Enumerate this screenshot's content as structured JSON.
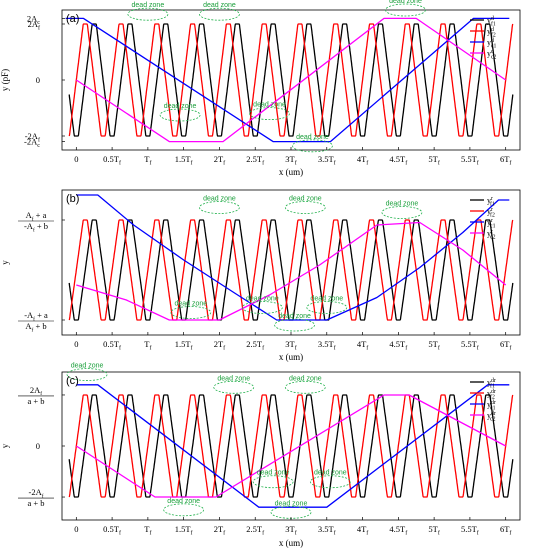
{
  "chart_data": [
    {
      "type": "line",
      "panel_label": "(a)",
      "ylabel": "y (pF)",
      "xlabel": "x (um)",
      "x_ticks": [
        "0",
        "0.5T_f",
        "T_f",
        "1.5T_f",
        "2T_f",
        "2.5T_f",
        "3T_f",
        "3.5T_f",
        "4T_f",
        "4.5T_f",
        "5T_f",
        "5.5T_f",
        "6T_f"
      ],
      "y_ticks": [
        {
          "label": "2A_c",
          "value": 2.2
        },
        {
          "label": "2A_f",
          "value": 2.0
        },
        {
          "label": "0",
          "value": 0
        },
        {
          "label": "-2A_f",
          "value": -2.0
        },
        {
          "label": "-2A_c",
          "value": -2.2
        }
      ],
      "ylim": [
        -2.5,
        2.5
      ],
      "xlim_periods": [
        -0.2,
        6.2
      ],
      "legend_position": "top-right",
      "series": [
        {
          "name": "y^d_f1",
          "color": "#000000",
          "kind": "fine_triangle",
          "amplitude": 2.0,
          "phase": 0.0
        },
        {
          "name": "y^d_f2",
          "color": "#ff0000",
          "kind": "fine_triangle",
          "amplitude": 2.0,
          "phase": 0.25
        },
        {
          "name": "y^d_c1",
          "color": "#0000ff",
          "kind": "coarse_plateau",
          "points": [
            [
              -0.15,
              2.2
            ],
            [
              0.1,
              2.2
            ],
            [
              2.75,
              -2.2
            ],
            [
              3.55,
              -2.2
            ],
            [
              5.55,
              2.2
            ],
            [
              6.05,
              2.2
            ]
          ]
        },
        {
          "name": "y^d_c2",
          "color": "#ff00ff",
          "kind": "coarse_plateau",
          "points": [
            [
              0.0,
              0.0
            ],
            [
              1.3,
              -2.2
            ],
            [
              2.05,
              -2.2
            ],
            [
              4.3,
              2.2
            ],
            [
              4.75,
              2.2
            ],
            [
              6.0,
              0.0
            ]
          ]
        }
      ],
      "annotations": [
        {
          "text": "dead zone",
          "x_period": 1.0,
          "y": 2.35
        },
        {
          "text": "dead zone",
          "x_period": 2.0,
          "y": 2.35
        },
        {
          "text": "dead zone",
          "x_period": 4.6,
          "y": 2.5
        },
        {
          "text": "dead zone",
          "x_period": 1.45,
          "y": -1.25
        },
        {
          "text": "dead zone",
          "x_period": 2.7,
          "y": -1.2
        },
        {
          "text": "dead zone",
          "x_period": 3.3,
          "y": -2.35
        }
      ]
    },
    {
      "type": "line",
      "panel_label": "(b)",
      "ylabel": "y",
      "xlabel": "x (um)",
      "x_ticks": [
        "0",
        "0.5T_f",
        "T_f",
        "1.5T_f",
        "2T_f",
        "2.5T_f",
        "3T_f",
        "3.5T_f",
        "4T_f",
        "4.5T_f",
        "5T_f",
        "5.5T_f",
        "6T_f"
      ],
      "y_ticks": [
        {
          "label_num": "A_f + a",
          "label_den": "-A_f + b",
          "value": 1.0
        },
        {
          "label_num": "-A_f + a",
          "label_den": "A_f + b",
          "value": -1.0
        }
      ],
      "ylim": [
        -1.3,
        1.6
      ],
      "xlim_periods": [
        -0.2,
        6.2
      ],
      "legend_position": "top-right",
      "series": [
        {
          "name": "y^r_f1",
          "color": "#000000",
          "kind": "fine_triangle",
          "amplitude": 1.0,
          "phase": 0.0
        },
        {
          "name": "y^r_f2",
          "color": "#ff0000",
          "kind": "fine_triangle",
          "amplitude": 1.0,
          "phase": 0.25
        },
        {
          "name": "y^r_c1",
          "color": "#0000ff",
          "kind": "coarse_curve",
          "points": [
            [
              0.0,
              1.5
            ],
            [
              0.3,
              1.5
            ],
            [
              0.8,
              0.9
            ],
            [
              1.5,
              0.2
            ],
            [
              2.2,
              -0.45
            ],
            [
              2.8,
              -1.0
            ],
            [
              3.5,
              -1.0
            ],
            [
              4.2,
              -0.55
            ],
            [
              4.8,
              0.05
            ],
            [
              5.4,
              0.75
            ],
            [
              5.9,
              1.4
            ],
            [
              6.05,
              1.4
            ]
          ]
        },
        {
          "name": "y^r_c2",
          "color": "#ff00ff",
          "kind": "coarse_curve",
          "points": [
            [
              0.0,
              -0.3
            ],
            [
              0.7,
              -0.6
            ],
            [
              1.3,
              -1.0
            ],
            [
              2.0,
              -1.0
            ],
            [
              2.7,
              -0.5
            ],
            [
              3.4,
              0.1
            ],
            [
              4.2,
              0.9
            ],
            [
              4.8,
              0.95
            ],
            [
              5.4,
              0.4
            ],
            [
              6.0,
              -0.3
            ]
          ]
        }
      ],
      "annotations": [
        {
          "text": "dead zone",
          "x_period": 2.0,
          "y": 1.25
        },
        {
          "text": "dead zone",
          "x_period": 3.2,
          "y": 1.25
        },
        {
          "text": "dead zone",
          "x_period": 4.55,
          "y": 1.15
        },
        {
          "text": "dead zone",
          "x_period": 1.6,
          "y": -0.85
        },
        {
          "text": "dead zone",
          "x_period": 2.6,
          "y": -0.75
        },
        {
          "text": "dead zone",
          "x_period": 3.5,
          "y": -0.75
        },
        {
          "text": "dead zone",
          "x_period": 3.05,
          "y": -1.1
        }
      ]
    },
    {
      "type": "line",
      "panel_label": "(c)",
      "ylabel": "y",
      "xlabel": "x (um)",
      "x_ticks": [
        "0",
        "0.5T_f",
        "T_f",
        "1.5T_f",
        "2T_f",
        "2.5T_f",
        "3T_f",
        "3.5T_f",
        "4T_f",
        "4.5T_f",
        "5T_f",
        "5.5T_f",
        "6T_f"
      ],
      "y_ticks": [
        {
          "label_num": "2A_f",
          "label_den": "a + b",
          "value": 1.0
        },
        {
          "label": "0",
          "value": 0
        },
        {
          "label_num": "-2A_f",
          "label_den": "a + b",
          "value": -1.0
        }
      ],
      "ylim": [
        -1.45,
        1.45
      ],
      "xlim_periods": [
        -0.2,
        6.2
      ],
      "legend_position": "top-right",
      "series": [
        {
          "name": "y^dr_f1",
          "color": "#000000",
          "kind": "fine_triangle",
          "amplitude": 1.0,
          "phase": 0.0
        },
        {
          "name": "y^dr_f2",
          "color": "#ff0000",
          "kind": "fine_triangle",
          "amplitude": 1.0,
          "phase": 0.25
        },
        {
          "name": "y^dr_c1",
          "color": "#0000ff",
          "kind": "coarse_plateau",
          "points": [
            [
              0.0,
              1.2
            ],
            [
              0.3,
              1.2
            ],
            [
              2.55,
              -1.2
            ],
            [
              3.5,
              -1.2
            ],
            [
              5.75,
              1.2
            ],
            [
              6.05,
              1.2
            ]
          ]
        },
        {
          "name": "y^dr_c2",
          "color": "#ff00ff",
          "kind": "coarse_plateau",
          "points": [
            [
              0.0,
              0.0
            ],
            [
              1.1,
              -1.0
            ],
            [
              1.95,
              -1.0
            ],
            [
              4.3,
              1.0
            ],
            [
              4.65,
              1.0
            ],
            [
              6.0,
              0.0
            ]
          ]
        }
      ],
      "annotations": [
        {
          "text": "dead zone",
          "x_period": 0.15,
          "y": 1.4
        },
        {
          "text": "dead zone",
          "x_period": 2.2,
          "y": 1.15
        },
        {
          "text": "dead zone",
          "x_period": 3.2,
          "y": 1.15
        },
        {
          "text": "dead zone",
          "x_period": 1.5,
          "y": -1.25
        },
        {
          "text": "dead zone",
          "x_period": 2.75,
          "y": -0.7
        },
        {
          "text": "dead zone",
          "x_period": 3.55,
          "y": -0.7
        },
        {
          "text": "dead zone",
          "x_period": 3.0,
          "y": -1.3
        }
      ]
    }
  ]
}
